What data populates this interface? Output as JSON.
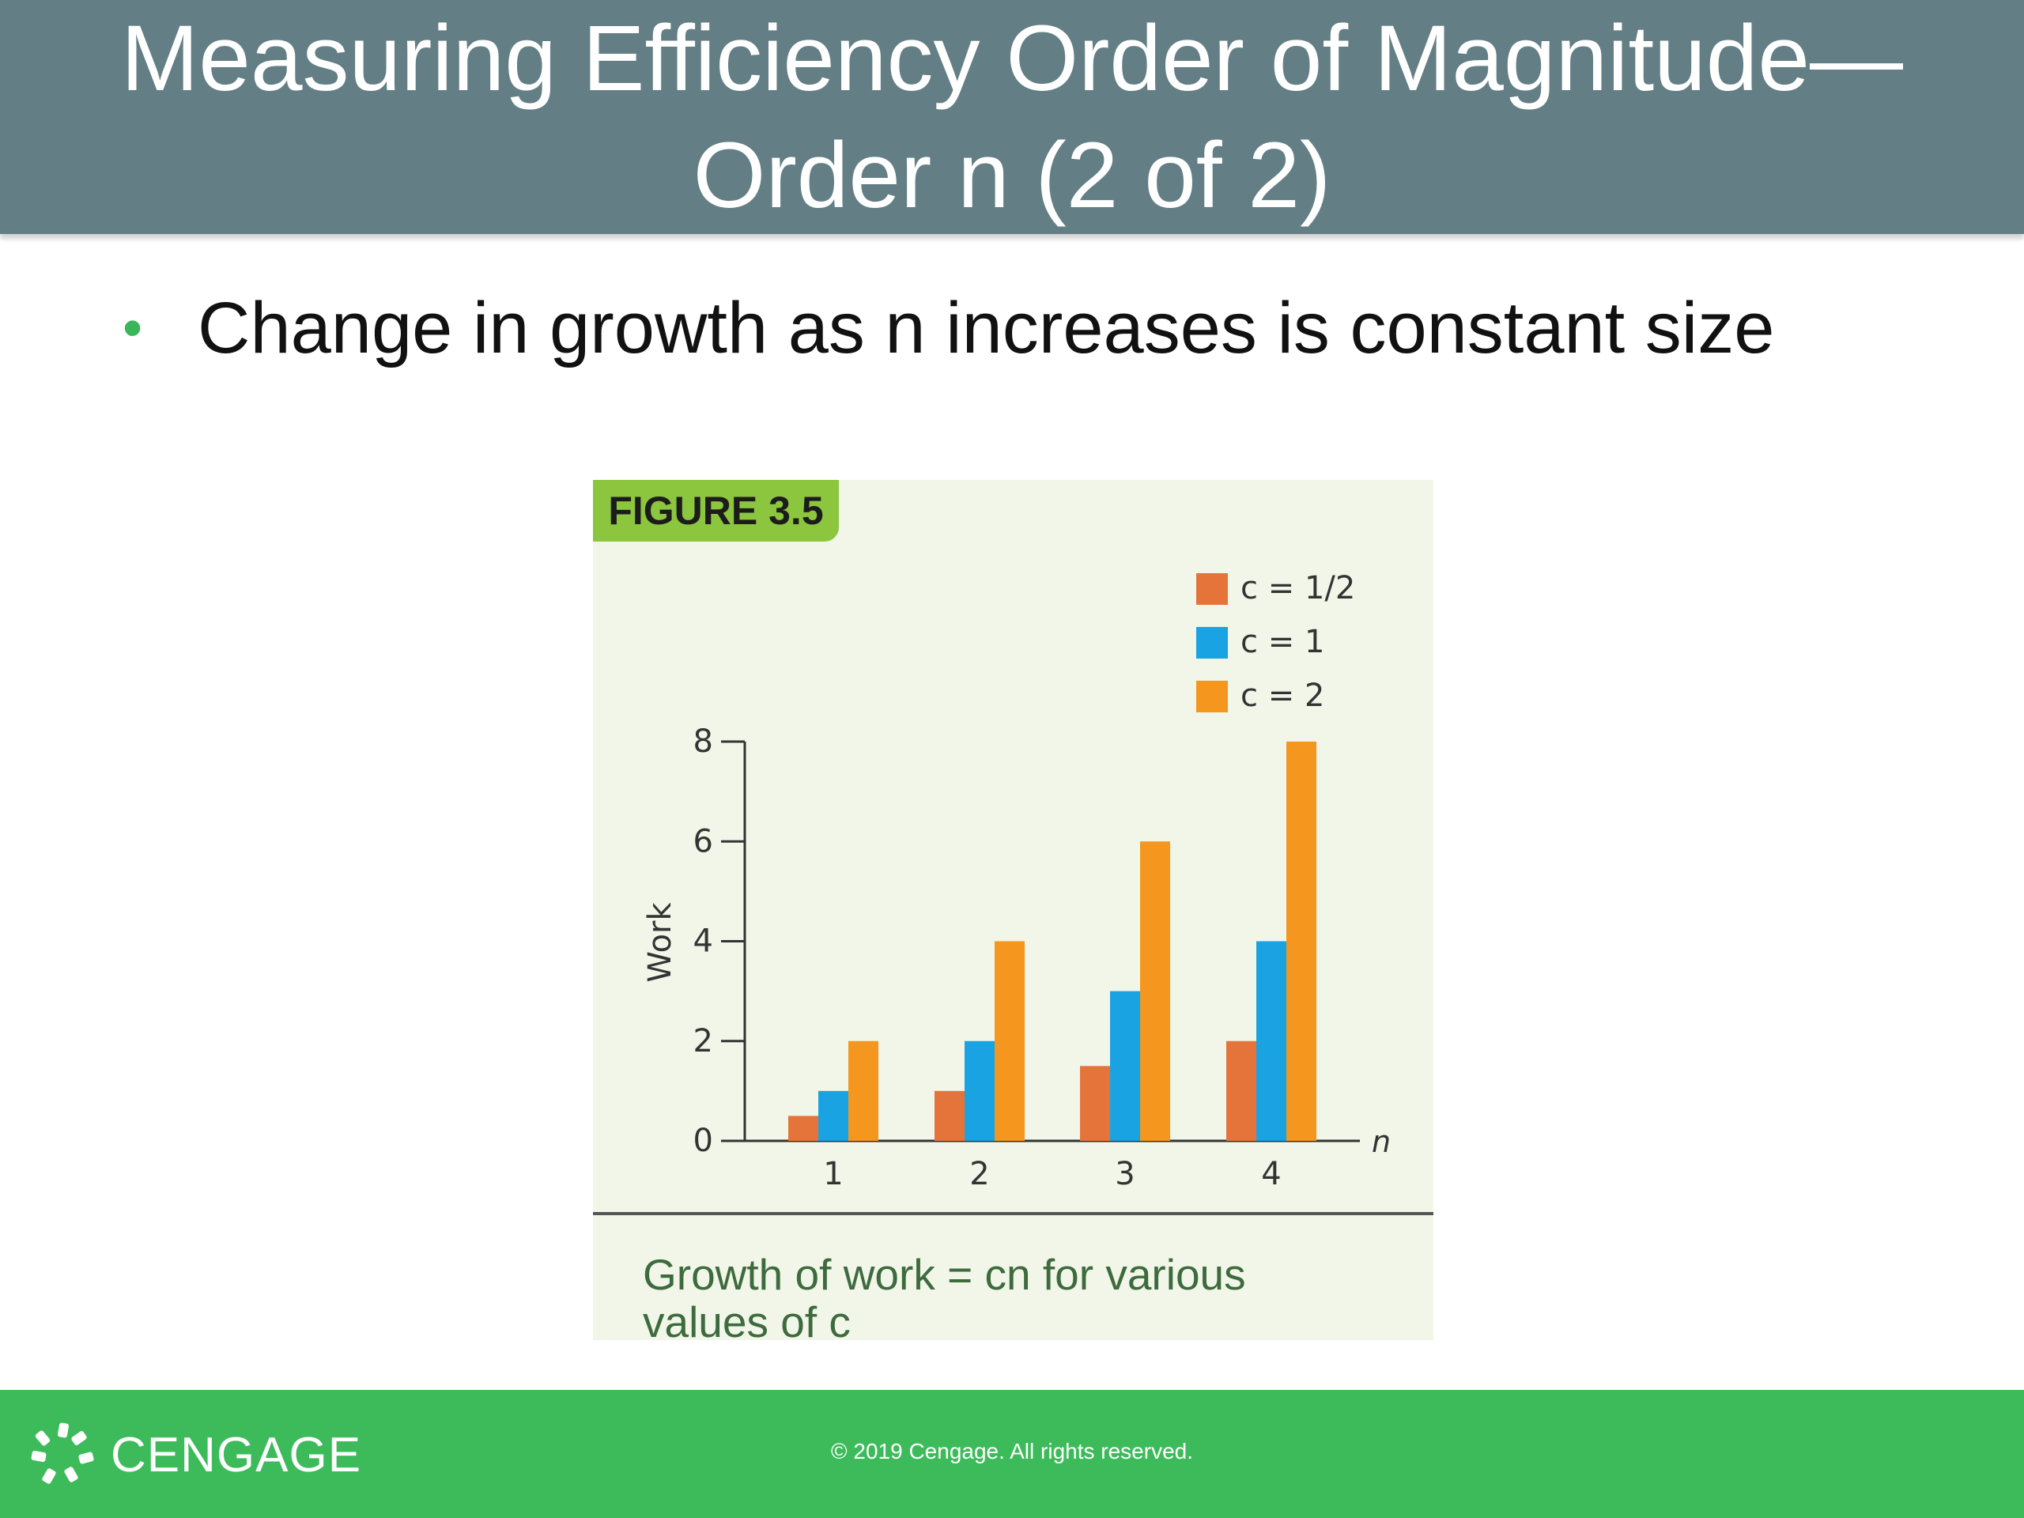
{
  "slide": {
    "title_line1": "Measuring Efficiency Order of Magnitude—",
    "title_line2": "Order n (2 of 2)",
    "bullet": "Change in growth as n increases is constant size"
  },
  "figure": {
    "label": "FIGURE 3.5",
    "caption": "Growth of work = cn for various values of c"
  },
  "chart_data": {
    "type": "bar",
    "categories": [
      "1",
      "2",
      "3",
      "4"
    ],
    "series": [
      {
        "name": "c = 1/2",
        "values": [
          0.5,
          1,
          1.5,
          2
        ],
        "color": "#e5743a"
      },
      {
        "name": "c = 1",
        "values": [
          1,
          2,
          3,
          4
        ],
        "color": "#1aa3e3"
      },
      {
        "name": "c = 2",
        "values": [
          2,
          4,
          6,
          8
        ],
        "color": "#f5961f"
      }
    ],
    "ylabel": "Work",
    "xlabel": "n",
    "ylim": [
      0,
      8
    ],
    "yticks": [
      0,
      2,
      4,
      6,
      8
    ],
    "legend": "top-right",
    "grid": false
  },
  "footer": {
    "brand": "CENGAGE",
    "copyright": "© 2019 Cengage. All rights reserved."
  },
  "colors": {
    "title_bar": "#637f85",
    "footer": "#3dbb5a",
    "figure_bg": "#f1f6e8",
    "figure_label_bg": "#8cc63e"
  },
  "icons": {
    "brand_logo": "cengage-logo-icon"
  }
}
